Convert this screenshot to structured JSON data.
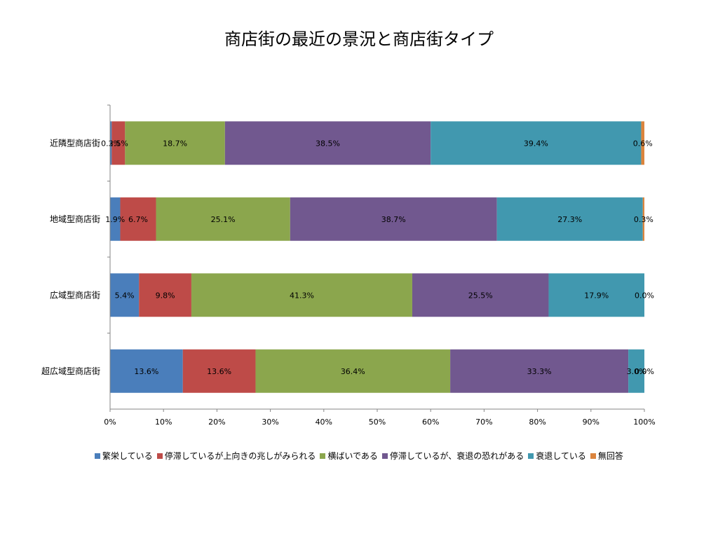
{
  "chart_data": {
    "type": "bar",
    "orientation": "horizontal",
    "stacked": "percent",
    "title": "商店街の最近の景況と商店街タイプ",
    "categories": [
      "近隣型商店街",
      "地域型商店街",
      "広域型商店街",
      "超広域型商店街"
    ],
    "series": [
      {
        "name": "繁栄している",
        "color": "#4a7ebb",
        "values": [
          0.3,
          1.9,
          5.4,
          13.6
        ],
        "labels": [
          "0.3%",
          "1.9%",
          "5.4%",
          "13.6%"
        ]
      },
      {
        "name": "停滞しているが上向きの兆しがみられる",
        "color": "#be4b48",
        "values": [
          2.5,
          6.7,
          9.8,
          13.6
        ],
        "labels": [
          "2.5%",
          "6.7%",
          "9.8%",
          "13.6%"
        ]
      },
      {
        "name": "横ばいである",
        "color": "#8ba64d",
        "values": [
          18.7,
          25.1,
          41.3,
          36.4
        ],
        "labels": [
          "18.7%",
          "25.1%",
          "41.3%",
          "36.4%"
        ]
      },
      {
        "name": "停滞しているが、衰退の恐れがある",
        "color": "#71588f",
        "values": [
          38.5,
          38.7,
          25.5,
          33.3
        ],
        "labels": [
          "38.5%",
          "38.7%",
          "25.5%",
          "33.3%"
        ]
      },
      {
        "name": "衰退している",
        "color": "#4198af",
        "values": [
          39.4,
          27.3,
          17.9,
          3.0
        ],
        "labels": [
          "39.4%",
          "27.3%",
          "17.9%",
          "3.0%"
        ]
      },
      {
        "name": "無回答",
        "color": "#db843d",
        "values": [
          0.6,
          0.3,
          0.0,
          0.0
        ],
        "labels": [
          "0.6%",
          "0.3%",
          "0.0%",
          "0.0%"
        ]
      }
    ],
    "xlim": [
      0,
      100
    ],
    "xticks": [
      "0%",
      "10%",
      "20%",
      "30%",
      "40%",
      "50%",
      "60%",
      "70%",
      "80%",
      "90%",
      "100%"
    ],
    "grid": false,
    "legend": "bottom"
  }
}
